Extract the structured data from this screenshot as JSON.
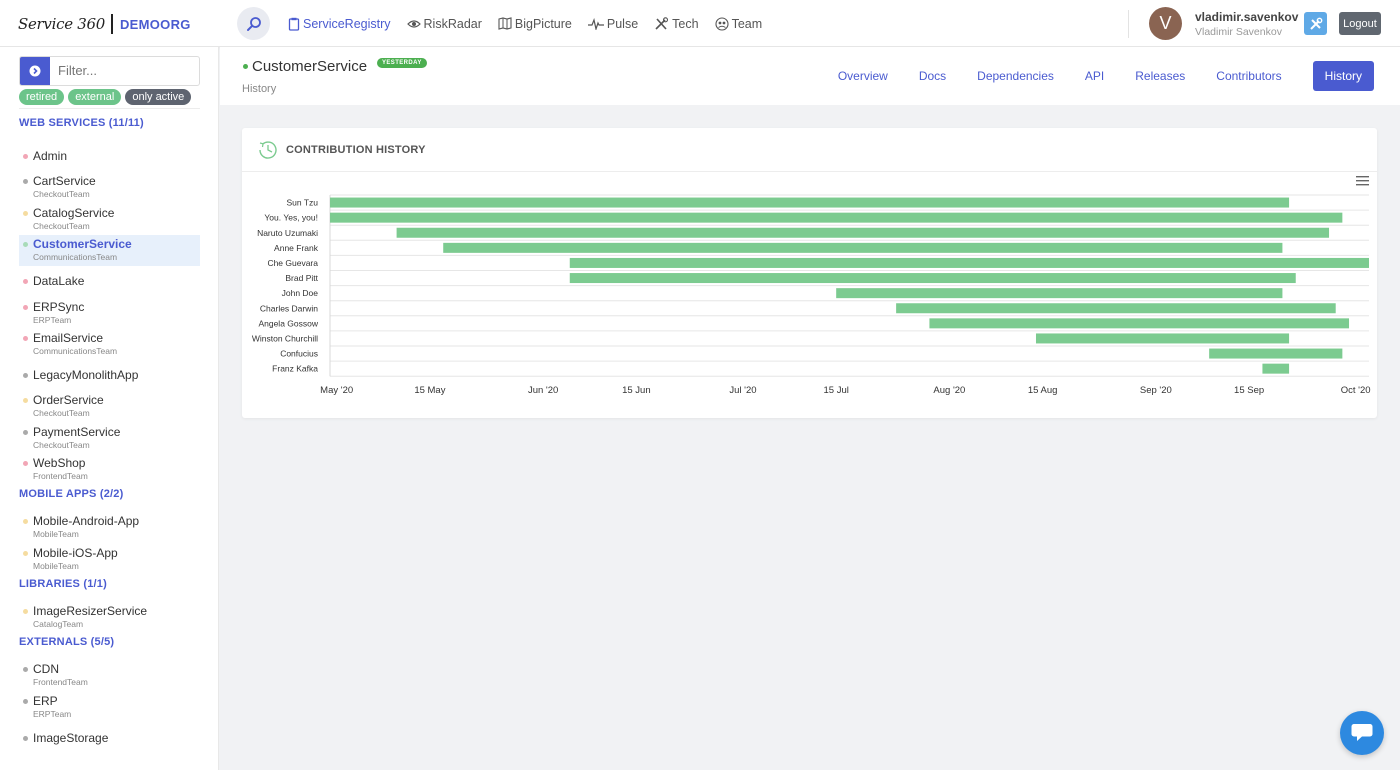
{
  "brand": {
    "logo": "Service 360",
    "org": "DEMOORG"
  },
  "nav": [
    {
      "label": "ServiceRegistry",
      "icon": "clipboard-icon",
      "active": true
    },
    {
      "label": "RiskRadar",
      "icon": "eye-icon",
      "active": false
    },
    {
      "label": "BigPicture",
      "icon": "map-icon",
      "active": false
    },
    {
      "label": "Pulse",
      "icon": "pulse-icon",
      "active": false
    },
    {
      "label": "Tech",
      "icon": "tools-icon",
      "active": false
    },
    {
      "label": "Team",
      "icon": "team-icon",
      "active": false
    }
  ],
  "user": {
    "initial": "V",
    "login": "vladimir.savenkov",
    "name": "Vladimir Savenkov",
    "logout_label": "Logout"
  },
  "sidebar": {
    "filter_placeholder": "Filter...",
    "chips": [
      "retired",
      "external",
      "only active"
    ],
    "sections": [
      {
        "title": "WEB SERVICES (11/11)",
        "items": [
          {
            "name": "Admin",
            "team": "",
            "dot": "#f2a6b6"
          },
          {
            "name": "CartService",
            "team": "CheckoutTeam",
            "dot": "#aaaaaa"
          },
          {
            "name": "CatalogService",
            "team": "CheckoutTeam",
            "dot": "#f5dca0"
          },
          {
            "name": "CustomerService",
            "team": "CommunicationsTeam",
            "dot": "#a8dbb8",
            "active": true
          },
          {
            "name": "DataLake",
            "team": "",
            "dot": "#f2a6b6"
          },
          {
            "name": "ERPSync",
            "team": "ERPTeam",
            "dot": "#f2a6b6"
          },
          {
            "name": "EmailService",
            "team": "CommunicationsTeam",
            "dot": "#f2a6b6"
          },
          {
            "name": "LegacyMonolithApp",
            "team": "",
            "dot": "#aaaaaa"
          },
          {
            "name": "OrderService",
            "team": "CheckoutTeam",
            "dot": "#f5dca0"
          },
          {
            "name": "PaymentService",
            "team": "CheckoutTeam",
            "dot": "#aaaaaa"
          },
          {
            "name": "WebShop",
            "team": "FrontendTeam",
            "dot": "#f2a6b6"
          }
        ]
      },
      {
        "title": "MOBILE APPS (2/2)",
        "items": [
          {
            "name": "Mobile-Android-App",
            "team": "MobileTeam",
            "dot": "#f5dca0"
          },
          {
            "name": "Mobile-iOS-App",
            "team": "MobileTeam",
            "dot": "#f5dca0"
          }
        ]
      },
      {
        "title": "LIBRARIES (1/1)",
        "items": [
          {
            "name": "ImageResizerService",
            "team": "CatalogTeam",
            "dot": "#f5dca0"
          }
        ]
      },
      {
        "title": "EXTERNALS (5/5)",
        "items": [
          {
            "name": "CDN",
            "team": "FrontendTeam",
            "dot": "#aaaaaa"
          },
          {
            "name": "ERP",
            "team": "ERPTeam",
            "dot": "#aaaaaa"
          },
          {
            "name": "ImageStorage",
            "team": "",
            "dot": "#aaaaaa"
          }
        ]
      }
    ]
  },
  "service": {
    "title": "CustomerService",
    "badge": "YESTERDAY",
    "subtitle": "History"
  },
  "tabs": [
    {
      "label": "Overview",
      "active": false
    },
    {
      "label": "Docs",
      "active": false
    },
    {
      "label": "Dependencies",
      "active": false
    },
    {
      "label": "API",
      "active": false
    },
    {
      "label": "Releases",
      "active": false
    },
    {
      "label": "Contributors",
      "active": false
    },
    {
      "label": "History",
      "active": true
    }
  ],
  "card": {
    "title": "CONTRIBUTION HISTORY"
  },
  "colors": {
    "accent": "#4a5bd0",
    "bar": "#7ccb90",
    "active_dot": "#4caf50"
  },
  "chart_data": {
    "type": "bar",
    "orientation": "horizontal-range",
    "title": "",
    "xlabel": "",
    "ylabel": "",
    "x_range": [
      "2020-04-30",
      "2020-10-03"
    ],
    "x_ticks": [
      {
        "label": "May '20",
        "date": "2020-05-01"
      },
      {
        "label": "15 May",
        "date": "2020-05-15"
      },
      {
        "label": "Jun '20",
        "date": "2020-06-01"
      },
      {
        "label": "15 Jun",
        "date": "2020-06-15"
      },
      {
        "label": "Jul '20",
        "date": "2020-07-01"
      },
      {
        "label": "15 Jul",
        "date": "2020-07-15"
      },
      {
        "label": "Aug '20",
        "date": "2020-08-01"
      },
      {
        "label": "15 Aug",
        "date": "2020-08-15"
      },
      {
        "label": "Sep '20",
        "date": "2020-09-01"
      },
      {
        "label": "15 Sep",
        "date": "2020-09-15"
      },
      {
        "label": "Oct '20",
        "date": "2020-10-01"
      }
    ],
    "grid": true,
    "categories": [
      "Sun Tzu",
      "You. Yes, you!",
      "Naruto Uzumaki",
      "Anne Frank",
      "Che Guevara",
      "Brad Pitt",
      "John Doe",
      "Charles Darwin",
      "Angela Gossow",
      "Winston Churchill",
      "Confucius",
      "Franz Kafka"
    ],
    "ranges": [
      {
        "start": "2020-04-30",
        "end": "2020-09-21"
      },
      {
        "start": "2020-04-30",
        "end": "2020-09-29"
      },
      {
        "start": "2020-05-10",
        "end": "2020-09-27"
      },
      {
        "start": "2020-05-17",
        "end": "2020-09-20"
      },
      {
        "start": "2020-06-05",
        "end": "2020-10-03"
      },
      {
        "start": "2020-06-05",
        "end": "2020-09-22"
      },
      {
        "start": "2020-07-15",
        "end": "2020-09-20"
      },
      {
        "start": "2020-07-24",
        "end": "2020-09-28"
      },
      {
        "start": "2020-07-29",
        "end": "2020-09-30"
      },
      {
        "start": "2020-08-14",
        "end": "2020-09-21"
      },
      {
        "start": "2020-09-09",
        "end": "2020-09-29"
      },
      {
        "start": "2020-09-17",
        "end": "2020-09-21"
      }
    ]
  }
}
